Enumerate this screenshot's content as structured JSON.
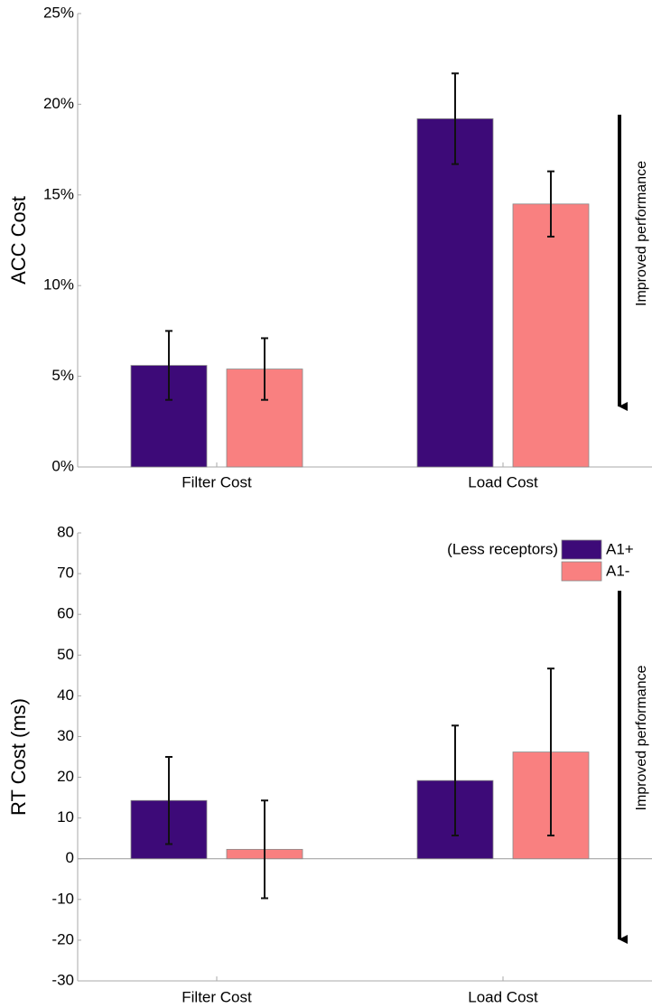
{
  "chart_data": [
    {
      "type": "bar",
      "y_label": "ACC Cost",
      "categories": [
        "Filter Cost",
        "Load Cost"
      ],
      "series": [
        {
          "name": "A1+",
          "color": "#3d0a78",
          "values": [
            5.6,
            19.2
          ],
          "errors": [
            1.9,
            2.5
          ]
        },
        {
          "name": "A1-",
          "color": "#f98080",
          "values": [
            5.4,
            14.5
          ],
          "errors": [
            1.7,
            1.8
          ]
        }
      ],
      "ylim": [
        0,
        25
      ],
      "yticks": [
        {
          "value": 0,
          "label": "0%"
        },
        {
          "value": 5,
          "label": "5%"
        },
        {
          "value": 10,
          "label": "10%"
        },
        {
          "value": 15,
          "label": "15%"
        },
        {
          "value": 20,
          "label": "20%"
        },
        {
          "value": 25,
          "label": "25%"
        }
      ],
      "annotation": "Improved performance"
    },
    {
      "type": "bar",
      "y_label": "RT Cost (ms)",
      "categories": [
        "Filter Cost",
        "Load Cost"
      ],
      "series": [
        {
          "name": "A1+",
          "color": "#3d0a78",
          "values": [
            14.3,
            19.2
          ],
          "errors": [
            10.7,
            13.5
          ]
        },
        {
          "name": "A1-",
          "color": "#f98080",
          "values": [
            2.3,
            26.2
          ],
          "errors": [
            12,
            20.5
          ]
        }
      ],
      "ylim": [
        -30,
        80
      ],
      "yticks": [
        -30,
        -20,
        -10,
        0,
        10,
        20,
        30,
        40,
        50,
        60,
        70,
        80
      ],
      "legend": "top-right",
      "legend_note": "(Less receptors)",
      "annotation": "Improved performance"
    }
  ]
}
